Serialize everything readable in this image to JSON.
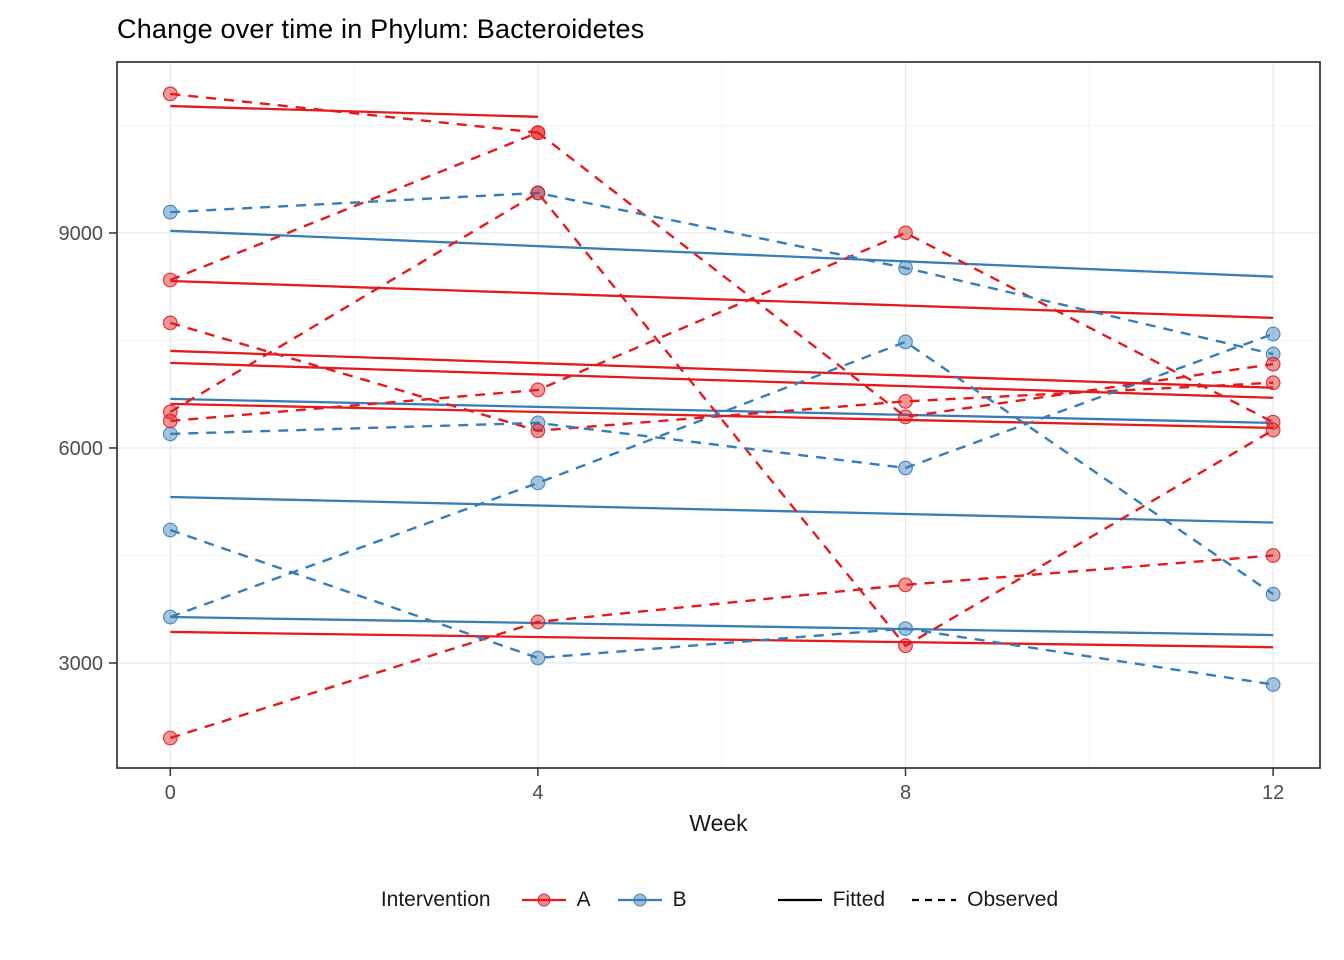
{
  "chart_data": {
    "type": "line",
    "title": "Change over time in Phylum: Bacteroidetes",
    "xlabel": "Week",
    "ylabel": "",
    "x_ticks": [
      0,
      4,
      8,
      12
    ],
    "x_minor": [
      2,
      6,
      10
    ],
    "y_ticks": [
      3000,
      6000,
      9000
    ],
    "y_minor": [
      4500,
      7500,
      10500
    ],
    "x_range": [
      -0.58,
      12.51
    ],
    "y_range": [
      1535,
      11385
    ],
    "grid": "on",
    "legend_position": "bottom",
    "colors": {
      "A": "#E41A1C",
      "B": "#377EB8"
    },
    "legend": {
      "title": "Intervention",
      "items": [
        {
          "label": "A",
          "color": "#E41A1C"
        },
        {
          "label": "B",
          "color": "#377EB8"
        }
      ],
      "linetypes": [
        {
          "label": "Fitted",
          "style": "solid"
        },
        {
          "label": "Observed",
          "style": "dashed"
        }
      ]
    },
    "subjects": [
      {
        "id": "A1",
        "intervention": "A",
        "observed": {
          "weeks": [
            0,
            4
          ],
          "values": [
            10940,
            10400
          ]
        },
        "fitted": {
          "weeks": [
            0,
            4
          ],
          "values": [
            10770,
            10620
          ]
        }
      },
      {
        "id": "A2",
        "intervention": "A",
        "observed": {
          "weeks": [
            0,
            4,
            8,
            12
          ],
          "values": [
            8344,
            10400,
            6434,
            7170
          ]
        },
        "fitted": {
          "weeks": [
            0,
            12
          ],
          "values": [
            8330,
            7815
          ]
        }
      },
      {
        "id": "A3",
        "intervention": "A",
        "observed": {
          "weeks": [
            0,
            4,
            8,
            12
          ],
          "values": [
            7745,
            6240,
            6650,
            6910
          ]
        },
        "fitted": {
          "weeks": [
            0,
            12
          ],
          "values": [
            7354,
            6840
          ]
        }
      },
      {
        "id": "A4",
        "intervention": "A",
        "observed": {
          "weeks": [
            0,
            4,
            8,
            12
          ],
          "values": [
            6503,
            9558,
            3240,
            6250
          ]
        },
        "fitted": {
          "weeks": [
            0,
            12
          ],
          "values": [
            6615,
            6280
          ]
        }
      },
      {
        "id": "A5",
        "intervention": "A",
        "observed": {
          "weeks": [
            0,
            4,
            8,
            12
          ],
          "values": [
            6377,
            6810,
            9000,
            6360
          ]
        },
        "fitted": {
          "weeks": [
            0,
            12
          ],
          "values": [
            7187,
            6700
          ]
        }
      },
      {
        "id": "A6",
        "intervention": "A",
        "observed": {
          "weeks": [
            0,
            4,
            8,
            12
          ],
          "values": [
            1954,
            3573,
            4090,
            4500
          ]
        },
        "fitted": {
          "weeks": [
            0,
            12
          ],
          "values": [
            3433,
            3220
          ]
        }
      },
      {
        "id": "B1",
        "intervention": "B",
        "observed": {
          "weeks": [
            0,
            4,
            8,
            12
          ],
          "values": [
            9290,
            9558,
            8512,
            7310
          ]
        },
        "fitted": {
          "weeks": [
            0,
            12
          ],
          "values": [
            9030,
            8390
          ]
        }
      },
      {
        "id": "B2",
        "intervention": "B",
        "observed": {
          "weeks": [
            0,
            4,
            8,
            12
          ],
          "values": [
            6196,
            6350,
            5721,
            7590
          ]
        },
        "fitted": {
          "weeks": [
            0,
            12
          ],
          "values": [
            6685,
            6350
          ]
        }
      },
      {
        "id": "B3",
        "intervention": "B",
        "observed": {
          "weeks": [
            0,
            4,
            8,
            12
          ],
          "values": [
            4856,
            3070,
            3480,
            2700
          ]
        },
        "fitted": {
          "weeks": [
            0,
            12
          ],
          "values": [
            5316,
            4960
          ]
        }
      },
      {
        "id": "B4",
        "intervention": "B",
        "observed": {
          "weeks": [
            0,
            4,
            8,
            12
          ],
          "values": [
            3642,
            5512,
            7480,
            3960
          ]
        },
        "fitted": {
          "weeks": [
            0,
            12
          ],
          "values": [
            3642,
            3390
          ]
        }
      }
    ]
  }
}
